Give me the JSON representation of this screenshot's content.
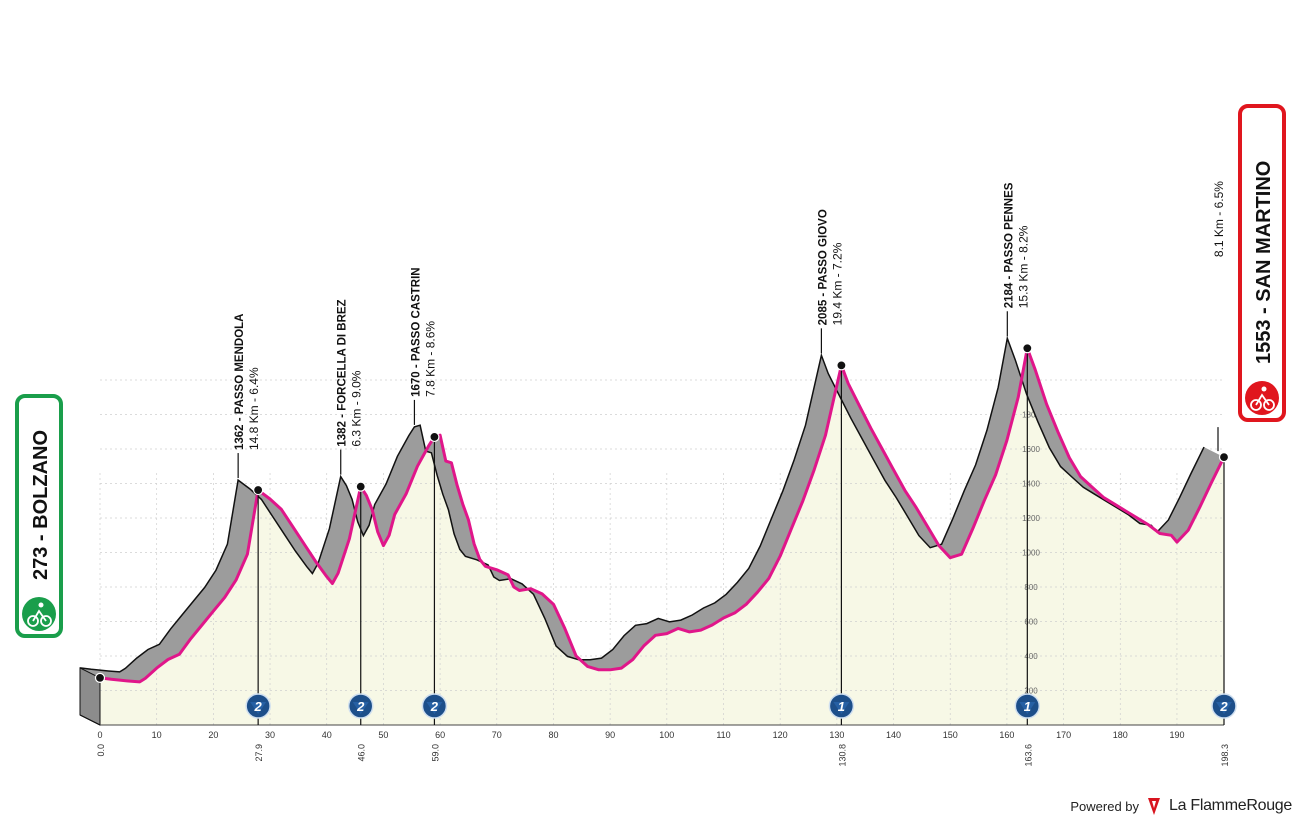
{
  "chart_data": {
    "type": "area",
    "title": "",
    "xlim": [
      0,
      198.3
    ],
    "ylim": [
      0,
      2300
    ],
    "x_ticks": [
      0,
      10,
      20,
      30,
      40,
      50,
      60,
      70,
      80,
      90,
      100,
      110,
      120,
      130,
      140,
      150,
      160,
      170,
      180,
      190
    ],
    "y_ticks": [
      200,
      400,
      600,
      800,
      1000,
      1200,
      1400,
      1600,
      1800,
      2000
    ],
    "profile": [
      [
        0,
        273
      ],
      [
        2,
        265
      ],
      [
        5,
        255
      ],
      [
        7,
        250
      ],
      [
        8,
        270
      ],
      [
        10,
        330
      ],
      [
        12,
        380
      ],
      [
        14,
        410
      ],
      [
        16,
        500
      ],
      [
        18,
        580
      ],
      [
        20,
        660
      ],
      [
        22,
        740
      ],
      [
        24,
        840
      ],
      [
        26,
        990
      ],
      [
        27.9,
        1362
      ],
      [
        30,
        1310
      ],
      [
        32,
        1250
      ],
      [
        34,
        1150
      ],
      [
        36,
        1050
      ],
      [
        38,
        950
      ],
      [
        40,
        860
      ],
      [
        41,
        820
      ],
      [
        42,
        880
      ],
      [
        44,
        1080
      ],
      [
        46,
        1382
      ],
      [
        47,
        1330
      ],
      [
        48,
        1250
      ],
      [
        49,
        1120
      ],
      [
        50,
        1040
      ],
      [
        51,
        1100
      ],
      [
        52,
        1220
      ],
      [
        54,
        1340
      ],
      [
        56,
        1500
      ],
      [
        58,
        1620
      ],
      [
        59,
        1670
      ],
      [
        60,
        1680
      ],
      [
        61,
        1530
      ],
      [
        62,
        1520
      ],
      [
        63,
        1390
      ],
      [
        64,
        1280
      ],
      [
        65,
        1190
      ],
      [
        66,
        1050
      ],
      [
        67,
        960
      ],
      [
        68,
        920
      ],
      [
        70,
        900
      ],
      [
        72,
        870
      ],
      [
        73,
        800
      ],
      [
        74,
        780
      ],
      [
        76,
        790
      ],
      [
        78,
        760
      ],
      [
        80,
        700
      ],
      [
        82,
        560
      ],
      [
        84,
        400
      ],
      [
        86,
        340
      ],
      [
        88,
        320
      ],
      [
        90,
        320
      ],
      [
        92,
        330
      ],
      [
        94,
        380
      ],
      [
        96,
        460
      ],
      [
        98,
        520
      ],
      [
        100,
        530
      ],
      [
        102,
        560
      ],
      [
        104,
        540
      ],
      [
        106,
        550
      ],
      [
        108,
        580
      ],
      [
        110,
        620
      ],
      [
        112,
        650
      ],
      [
        114,
        700
      ],
      [
        116,
        770
      ],
      [
        118,
        850
      ],
      [
        120,
        980
      ],
      [
        122,
        1140
      ],
      [
        124,
        1300
      ],
      [
        126,
        1480
      ],
      [
        128,
        1680
      ],
      [
        130.8,
        2085
      ],
      [
        132,
        1980
      ],
      [
        134,
        1850
      ],
      [
        136,
        1720
      ],
      [
        138,
        1600
      ],
      [
        140,
        1480
      ],
      [
        142,
        1360
      ],
      [
        144,
        1260
      ],
      [
        146,
        1150
      ],
      [
        148,
        1040
      ],
      [
        150,
        970
      ],
      [
        152,
        990
      ],
      [
        154,
        1140
      ],
      [
        156,
        1300
      ],
      [
        158,
        1450
      ],
      [
        160,
        1650
      ],
      [
        162,
        1900
      ],
      [
        163.6,
        2184
      ],
      [
        165,
        2060
      ],
      [
        167,
        1860
      ],
      [
        169,
        1700
      ],
      [
        171,
        1550
      ],
      [
        173,
        1440
      ],
      [
        175,
        1380
      ],
      [
        177,
        1320
      ],
      [
        179,
        1280
      ],
      [
        181,
        1240
      ],
      [
        183,
        1200
      ],
      [
        185,
        1160
      ],
      [
        187,
        1110
      ],
      [
        189,
        1100
      ],
      [
        190,
        1060
      ],
      [
        192,
        1130
      ],
      [
        194,
        1260
      ],
      [
        196,
        1400
      ],
      [
        198.3,
        1553
      ]
    ],
    "points_of_interest": [
      {
        "km": "0.0",
        "x": 0,
        "alt": 273,
        "name": "",
        "climb": ""
      },
      {
        "km": "27.9",
        "x": 27.9,
        "alt": 1362,
        "name": "1362 - PASSO MENDOLA",
        "climb": "14.8 Km - 6.4%",
        "cat": "2"
      },
      {
        "km": "46.0",
        "x": 46.0,
        "alt": 1382,
        "name": "1382 - FORCELLA DI BREZ",
        "climb": "6.3 Km - 9.0%",
        "cat": "2"
      },
      {
        "km": "59.0",
        "x": 59.0,
        "alt": 1670,
        "name": "1670 - PASSO CASTRIN",
        "climb": "7.8 Km - 8.6%",
        "cat": "2"
      },
      {
        "km": "130.8",
        "x": 130.8,
        "alt": 2085,
        "name": "2085 - PASSO GIOVO",
        "climb": "19.4 Km - 7.2%",
        "cat": "1"
      },
      {
        "km": "163.6",
        "x": 163.6,
        "alt": 2184,
        "name": "2184 - PASSO PENNES",
        "climb": "15.3 Km - 8.2%",
        "cat": "1"
      },
      {
        "km": "198.3",
        "x": 198.3,
        "alt": 1553,
        "name": "",
        "climb": "8.1 Km - 6.5%",
        "cat": "2"
      }
    ],
    "start": {
      "label": "273 - BOLZANO",
      "color": "#1a9e4b"
    },
    "finish": {
      "label": "1553 - SAN MARTINO",
      "color": "#e0161e"
    },
    "colors": {
      "area": "#f7f8e6",
      "climb_shade": "#9c9c9c",
      "route_line": "#e0168a",
      "grid": "#cfcfcf"
    }
  },
  "footer": {
    "powered_by": "Powered by",
    "brand": "La FlammeRouge"
  }
}
